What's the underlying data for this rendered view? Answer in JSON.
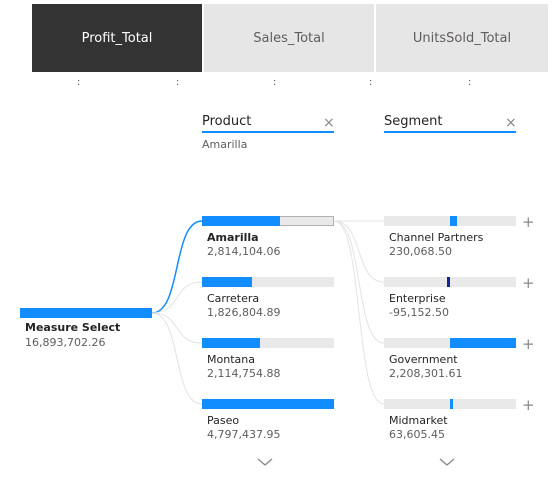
{
  "tabs": [
    {
      "label": "Profit_Total",
      "active": true
    },
    {
      "label": "Sales_Total",
      "active": false
    },
    {
      "label": "UnitsSold_Total",
      "active": false
    }
  ],
  "tab_separator": ":",
  "root": {
    "label": "Measure Select",
    "value": "16,893,702.26",
    "fill": 1.0
  },
  "product": {
    "header": "Product",
    "selected": "Amarilla",
    "items": [
      {
        "label": "Amarilla",
        "value": "2,814,104.06",
        "fill": 0.59,
        "selected": true
      },
      {
        "label": "Carretera",
        "value": "1,826,804.89",
        "fill": 0.38,
        "selected": false
      },
      {
        "label": "Montana",
        "value": "2,114,754.88",
        "fill": 0.44,
        "selected": false
      },
      {
        "label": "Paseo",
        "value": "4,797,437.95",
        "fill": 1.0,
        "selected": false
      }
    ]
  },
  "segment": {
    "header": "Segment",
    "items": [
      {
        "label": "Channel Partners",
        "value": "230,068.50",
        "amount": 230068.5,
        "color": "#118dff"
      },
      {
        "label": "Enterprise",
        "value": "-95,152.50",
        "amount": -95152.5,
        "color": "#12239e"
      },
      {
        "label": "Government",
        "value": "2,208,301.61",
        "amount": 2208301.61,
        "color": "#118dff"
      },
      {
        "label": "Midmarket",
        "value": "63,605.45",
        "amount": 63605.45,
        "color": "#118dff"
      }
    ]
  },
  "icons": {
    "close": "×",
    "plus": "+",
    "chevron": "chevron-down"
  },
  "colors": {
    "accent": "#118dff",
    "negative": "#12239e",
    "tab_active": "#333333",
    "tab_inactive": "#e6e6e6"
  }
}
